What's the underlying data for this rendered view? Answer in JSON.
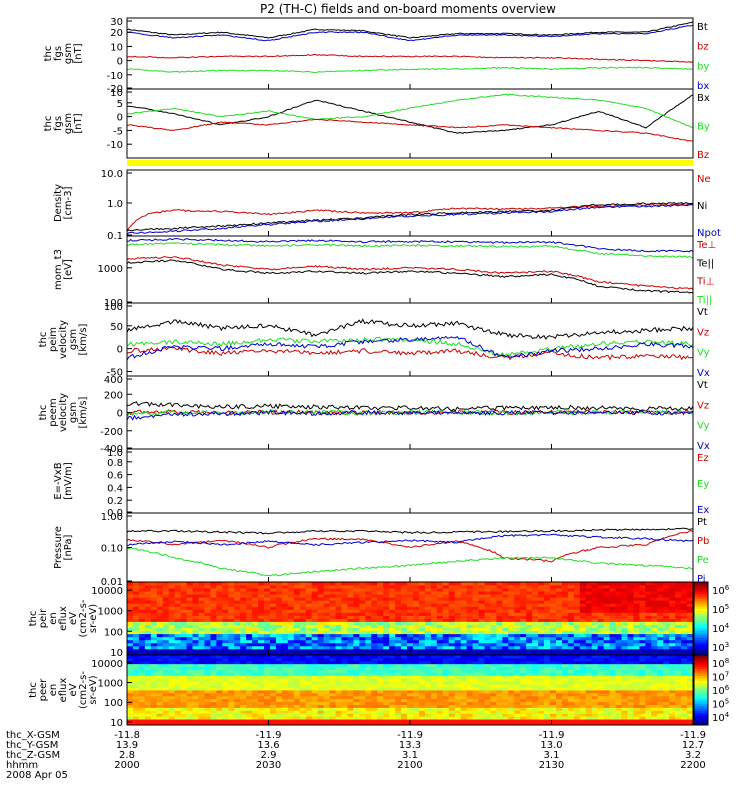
{
  "title": "P2 (TH-C) fields and on-board moments overview",
  "colors": {
    "black": "#000000",
    "red": "#cc0000",
    "green": "#22dd22",
    "blue": "#0000cc",
    "yellow": "#ffff00"
  },
  "x_axis": {
    "rows": [
      {
        "label": "thc_X-GSM",
        "values": [
          "-11.8",
          "-11.9",
          "-11.9",
          "-11.9",
          "-11.9"
        ]
      },
      {
        "label": "thc_Y-GSM",
        "values": [
          "13.9",
          "13.6",
          "13.3",
          "13.0",
          "12.7"
        ]
      },
      {
        "label": "thc_Z-GSM",
        "values": [
          "2.8",
          "2.9",
          "3.1",
          "3.1",
          "3.2"
        ]
      },
      {
        "label": "hhmm",
        "values": [
          "2000",
          "2030",
          "2100",
          "2130",
          "2200"
        ]
      }
    ],
    "date": "2008 Apr 05",
    "range_minutes": [
      0,
      120
    ],
    "tick_minutes": [
      0,
      30,
      60,
      90,
      120
    ]
  },
  "chart_data": [
    {
      "type": "line",
      "ylabel": [
        "thc",
        "fgs",
        "gsm",
        "[nT]"
      ],
      "ylim": [
        -20,
        30
      ],
      "yticks": [
        "30",
        "20",
        "10",
        "0",
        "-10",
        "-20"
      ],
      "legend": [
        "Bt",
        "bz",
        "by",
        "bx"
      ],
      "series": [
        {
          "name": "Bt",
          "color": "black",
          "x": [
            0,
            10,
            20,
            30,
            40,
            50,
            60,
            70,
            80,
            90,
            100,
            110,
            120
          ],
          "values": [
            22,
            18,
            20,
            16,
            22,
            21,
            16,
            19,
            19,
            18,
            20,
            20,
            27
          ]
        },
        {
          "name": "bz",
          "color": "red",
          "x": [
            0,
            10,
            20,
            30,
            40,
            50,
            60,
            70,
            80,
            90,
            100,
            110,
            120
          ],
          "values": [
            3,
            2,
            3,
            3,
            4,
            3,
            3,
            3,
            2,
            2,
            1,
            0,
            -1
          ]
        },
        {
          "name": "by",
          "color": "green",
          "x": [
            0,
            10,
            20,
            30,
            40,
            50,
            60,
            70,
            80,
            90,
            100,
            110,
            120
          ],
          "values": [
            -6,
            -8,
            -7,
            -7,
            -8,
            -7,
            -6,
            -6,
            -5,
            -6,
            -5,
            -5,
            -6
          ]
        },
        {
          "name": "bx",
          "color": "blue",
          "x": [
            0,
            10,
            20,
            30,
            40,
            50,
            60,
            70,
            80,
            90,
            100,
            110,
            120
          ],
          "values": [
            20,
            16,
            18,
            14,
            20,
            20,
            14,
            18,
            18,
            17,
            19,
            19,
            25
          ]
        }
      ]
    },
    {
      "type": "line",
      "ylabel": [
        "thc",
        "fgs",
        "gsm",
        "[nT]"
      ],
      "ylim": [
        -15,
        10
      ],
      "yticks": [
        "10",
        "5",
        "0",
        "-5",
        "-10"
      ],
      "legend": [
        "Bx",
        "By",
        "Bz"
      ],
      "series": [
        {
          "name": "Bx",
          "color": "black",
          "x": [
            0,
            10,
            20,
            30,
            40,
            50,
            60,
            70,
            80,
            90,
            100,
            110,
            120
          ],
          "values": [
            4,
            1,
            -3,
            0,
            6,
            2,
            -2,
            -6,
            -5,
            -3,
            2,
            -4,
            8
          ]
        },
        {
          "name": "By",
          "color": "green",
          "x": [
            0,
            10,
            20,
            30,
            40,
            50,
            60,
            70,
            80,
            90,
            100,
            110,
            120
          ],
          "values": [
            1,
            3,
            0,
            2,
            -1,
            0,
            3,
            6,
            8,
            7,
            6,
            3,
            -4
          ]
        },
        {
          "name": "Bz",
          "color": "red",
          "x": [
            0,
            10,
            20,
            30,
            40,
            50,
            60,
            70,
            80,
            90,
            100,
            110,
            120
          ],
          "values": [
            -3,
            -5,
            -2,
            -3,
            -1,
            -2,
            -3,
            -4,
            -3,
            -4,
            -5,
            -6,
            -9
          ]
        }
      ]
    },
    {
      "type": "line",
      "log": true,
      "ylabel": [
        "Density",
        "[cm-3]"
      ],
      "ylim": [
        0.1,
        10
      ],
      "yticks": [
        "10.0",
        "1.0",
        "0.1"
      ],
      "legend": [
        "Ne",
        "Ni",
        "Npot"
      ],
      "series": [
        {
          "name": "Ne",
          "color": "red",
          "x": [
            0,
            5,
            10,
            20,
            30,
            40,
            50,
            60,
            70,
            80,
            90,
            100,
            110,
            120
          ],
          "values": [
            0.15,
            0.5,
            0.6,
            0.55,
            0.45,
            0.6,
            0.5,
            0.5,
            0.7,
            0.65,
            0.7,
            0.8,
            0.85,
            0.9
          ]
        },
        {
          "name": "Ni",
          "color": "black",
          "x": [
            0,
            10,
            20,
            30,
            40,
            50,
            60,
            70,
            80,
            90,
            100,
            110,
            120
          ],
          "values": [
            0.15,
            0.17,
            0.2,
            0.25,
            0.3,
            0.35,
            0.45,
            0.5,
            0.55,
            0.6,
            0.9,
            0.95,
            1.0
          ]
        },
        {
          "name": "Npot",
          "color": "blue",
          "x": [
            0,
            10,
            20,
            30,
            40,
            50,
            60,
            70,
            80,
            90,
            100,
            110,
            120
          ],
          "values": [
            0.12,
            0.14,
            0.17,
            0.22,
            0.28,
            0.33,
            0.4,
            0.45,
            0.5,
            0.55,
            0.75,
            0.8,
            0.85
          ]
        }
      ]
    },
    {
      "type": "line",
      "log": true,
      "ylabel": [
        "mom_t3",
        "[eV]"
      ],
      "ylim": [
        100,
        8000
      ],
      "yticks": [
        "1000",
        "100"
      ],
      "legend": [
        "Te⊥",
        "Te||",
        "Ti⊥",
        "Ti||"
      ],
      "series": [
        {
          "name": "Te⊥",
          "color": "red",
          "x": [
            0,
            10,
            20,
            30,
            40,
            50,
            60,
            70,
            80,
            90,
            100,
            110,
            120
          ],
          "values": [
            1800,
            2000,
            1200,
            900,
            1100,
            900,
            1000,
            900,
            700,
            800,
            400,
            300,
            250
          ]
        },
        {
          "name": "Te||",
          "color": "black",
          "x": [
            0,
            10,
            20,
            30,
            40,
            50,
            60,
            70,
            80,
            90,
            100,
            110,
            120
          ],
          "values": [
            1400,
            1600,
            900,
            700,
            800,
            700,
            800,
            700,
            550,
            650,
            300,
            220,
            200
          ]
        },
        {
          "name": "Ti⊥",
          "color": "blue",
          "x": [
            0,
            10,
            20,
            30,
            40,
            50,
            60,
            70,
            80,
            90,
            100,
            110,
            120
          ],
          "values": [
            6000,
            6500,
            6000,
            5500,
            6000,
            5500,
            5600,
            5500,
            5200,
            5400,
            3500,
            3000,
            3000
          ]
        },
        {
          "name": "Ti||",
          "color": "green",
          "x": [
            0,
            10,
            20,
            30,
            40,
            50,
            60,
            70,
            80,
            90,
            100,
            110,
            120
          ],
          "values": [
            4500,
            5000,
            4500,
            4200,
            4500,
            4200,
            4300,
            4200,
            4000,
            4100,
            2500,
            2200,
            2000
          ]
        }
      ]
    },
    {
      "type": "line",
      "ylabel": [
        "thc",
        "peim",
        "velocity",
        "gsm",
        "[km/s]"
      ],
      "ylim": [
        -60,
        100
      ],
      "yticks": [
        "100",
        "50",
        "0",
        "-50"
      ],
      "legend": [
        "Vt",
        "Vz",
        "Vy",
        "Vx"
      ],
      "series": [
        {
          "name": "Vt",
          "color": "black",
          "x": [
            0,
            10,
            20,
            30,
            40,
            50,
            60,
            70,
            80,
            90,
            100,
            110,
            120
          ],
          "values": [
            40,
            60,
            45,
            50,
            30,
            60,
            50,
            55,
            30,
            25,
            35,
            40,
            45
          ]
        },
        {
          "name": "Vz",
          "color": "red",
          "x": [
            0,
            10,
            20,
            30,
            40,
            50,
            60,
            70,
            80,
            90,
            100,
            110,
            120
          ],
          "values": [
            -5,
            0,
            -10,
            -5,
            -10,
            -5,
            -10,
            -5,
            -20,
            -10,
            -20,
            -15,
            -20
          ]
        },
        {
          "name": "Vy",
          "color": "green",
          "x": [
            0,
            10,
            20,
            30,
            40,
            50,
            60,
            70,
            80,
            90,
            100,
            110,
            120
          ],
          "values": [
            10,
            15,
            10,
            20,
            15,
            20,
            20,
            10,
            -15,
            0,
            10,
            15,
            10
          ]
        },
        {
          "name": "Vx",
          "color": "blue",
          "x": [
            0,
            10,
            20,
            30,
            40,
            50,
            60,
            70,
            80,
            90,
            100,
            110,
            120
          ],
          "values": [
            -20,
            5,
            0,
            10,
            5,
            15,
            20,
            25,
            -20,
            -5,
            0,
            10,
            5
          ]
        }
      ]
    },
    {
      "type": "line",
      "ylabel": [
        "thc",
        "peem",
        "velocity",
        "gsm",
        "[km/s]"
      ],
      "ylim": [
        -400,
        400
      ],
      "yticks": [
        "400",
        "200",
        "0",
        "-200",
        "-400"
      ],
      "legend": [
        "Vt",
        "Vz",
        "Vy",
        "Vx"
      ],
      "series": [
        {
          "name": "Vt",
          "color": "black",
          "x": [
            0,
            10,
            20,
            30,
            40,
            50,
            60,
            70,
            80,
            90,
            100,
            110,
            120
          ],
          "values": [
            100,
            80,
            60,
            70,
            60,
            50,
            50,
            40,
            50,
            60,
            50,
            40,
            50
          ]
        },
        {
          "name": "Vz",
          "color": "red",
          "x": [
            0,
            10,
            20,
            30,
            40,
            50,
            60,
            70,
            80,
            90,
            100,
            110,
            120
          ],
          "values": [
            0,
            10,
            -5,
            5,
            0,
            -5,
            0,
            5,
            0,
            0,
            5,
            0,
            0
          ]
        },
        {
          "name": "Vy",
          "color": "green",
          "x": [
            0,
            10,
            20,
            30,
            40,
            50,
            60,
            70,
            80,
            90,
            100,
            110,
            120
          ],
          "values": [
            -20,
            0,
            -10,
            10,
            0,
            -5,
            0,
            5,
            -5,
            0,
            0,
            5,
            0
          ]
        },
        {
          "name": "Vx",
          "color": "blue",
          "x": [
            0,
            10,
            20,
            30,
            40,
            50,
            60,
            70,
            80,
            90,
            100,
            110,
            120
          ],
          "values": [
            -60,
            -20,
            -10,
            0,
            -10,
            0,
            -5,
            0,
            -5,
            0,
            0,
            -5,
            0
          ]
        }
      ]
    },
    {
      "type": "line",
      "ylabel": [
        "E=-VxB",
        "[mV/m]"
      ],
      "ylim": [
        0,
        1.0
      ],
      "yticks": [
        "1.0",
        "0.8",
        "0.6",
        "0.4",
        "0.2",
        "0.0"
      ],
      "legend": [
        "Ez",
        "Ey",
        "Ex"
      ],
      "series": []
    },
    {
      "type": "line",
      "log": true,
      "ylabel": [
        "Pressure",
        "[nPa]"
      ],
      "ylim": [
        0.01,
        1.0
      ],
      "yticks": [
        "1.00",
        "0.10",
        "0.01"
      ],
      "legend": [
        "Pt",
        "Pb",
        "Pe",
        "Pi"
      ],
      "series": [
        {
          "name": "Pt",
          "color": "black",
          "x": [
            0,
            10,
            20,
            30,
            40,
            50,
            60,
            70,
            80,
            90,
            100,
            110,
            120
          ],
          "values": [
            0.3,
            0.3,
            0.28,
            0.26,
            0.3,
            0.3,
            0.27,
            0.28,
            0.29,
            0.3,
            0.32,
            0.33,
            0.35
          ]
        },
        {
          "name": "Pb",
          "color": "red",
          "x": [
            0,
            10,
            20,
            30,
            40,
            50,
            60,
            70,
            80,
            90,
            100,
            110,
            120
          ],
          "values": [
            0.17,
            0.12,
            0.16,
            0.1,
            0.18,
            0.17,
            0.1,
            0.15,
            0.05,
            0.04,
            0.1,
            0.12,
            0.3
          ]
        },
        {
          "name": "Pe",
          "color": "green",
          "x": [
            0,
            10,
            20,
            30,
            40,
            50,
            60,
            70,
            80,
            90,
            100,
            110,
            120
          ],
          "values": [
            0.1,
            0.05,
            0.025,
            0.015,
            0.02,
            0.025,
            0.03,
            0.04,
            0.05,
            0.05,
            0.035,
            0.03,
            0.025
          ]
        },
        {
          "name": "Pi",
          "color": "blue",
          "x": [
            0,
            10,
            20,
            30,
            40,
            50,
            60,
            70,
            80,
            90,
            100,
            110,
            120
          ],
          "values": [
            0.12,
            0.15,
            0.12,
            0.15,
            0.12,
            0.14,
            0.16,
            0.14,
            0.22,
            0.23,
            0.2,
            0.18,
            0.15
          ]
        }
      ]
    },
    {
      "type": "heatmap",
      "ylabel": [
        "thc",
        "peir",
        "en",
        "eflux",
        "eV",
        "(cm2-s-",
        "sr-eV)"
      ],
      "log": true,
      "ylim": [
        7,
        25000
      ],
      "yticks": [
        "10000",
        "1000",
        "100",
        "10"
      ],
      "colorbar": {
        "ticks": [
          "10",
          "10",
          "10",
          "10"
        ],
        "exponents": [
          "6",
          "5",
          "4",
          "3"
        ]
      }
    },
    {
      "type": "heatmap",
      "ylabel": [
        "thc",
        "peer",
        "en",
        "eflux",
        "eV",
        "(cm2-s-",
        "sr-eV)"
      ],
      "log": true,
      "ylim": [
        7,
        25000
      ],
      "yticks": [
        "10000",
        "1000",
        "100",
        "10"
      ],
      "colorbar": {
        "ticks": [
          "10",
          "10",
          "10",
          "10",
          "10"
        ],
        "exponents": [
          "8",
          "7",
          "6",
          "5",
          "4"
        ]
      }
    }
  ]
}
